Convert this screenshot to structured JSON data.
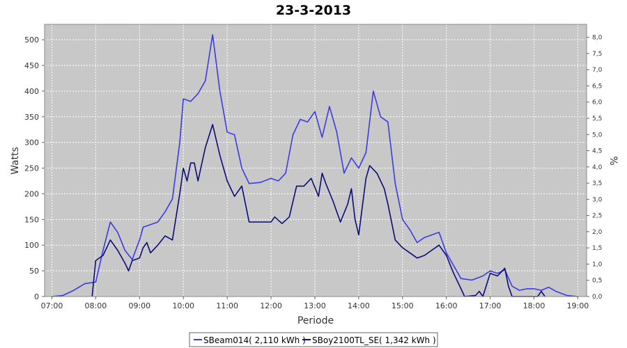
{
  "chart_data": {
    "type": "line",
    "title": "23-3-2013",
    "xlabel": "Periode",
    "ylabel": "Watts",
    "y2label": "%",
    "xlim": [
      "06:50",
      "19:12"
    ],
    "ylim": [
      0,
      530
    ],
    "y2lim": [
      0,
      8.4
    ],
    "x_ticks": [
      "07:00",
      "08:00",
      "09:00",
      "10:00",
      "11:00",
      "12:00",
      "13:00",
      "14:00",
      "15:00",
      "16:00",
      "17:00",
      "18:00",
      "19:00"
    ],
    "y_ticks": [
      0,
      50,
      100,
      150,
      200,
      250,
      300,
      350,
      400,
      450,
      500
    ],
    "y2_ticks": [
      "0,0",
      "0,5",
      "1,0",
      "1,5",
      "2,0",
      "2,5",
      "3,0",
      "3,5",
      "4,0",
      "4,5",
      "5,0",
      "5,5",
      "6,0",
      "6,5",
      "7,0",
      "7,5",
      "8,0"
    ],
    "grid": true,
    "legend_position": "bottom",
    "colors": {
      "plot_background": "#c8c8c8",
      "grid": "#ffffff"
    },
    "series": [
      {
        "name": "SBeam014( 2,110 kWh )",
        "color": "#3a3ae6",
        "points": [
          [
            "07:00",
            0
          ],
          [
            "07:15",
            2
          ],
          [
            "07:30",
            12
          ],
          [
            "07:45",
            25
          ],
          [
            "08:00",
            28
          ],
          [
            "08:10",
            90
          ],
          [
            "08:20",
            145
          ],
          [
            "08:30",
            125
          ],
          [
            "08:40",
            90
          ],
          [
            "08:50",
            72
          ],
          [
            "09:00",
            110
          ],
          [
            "09:05",
            135
          ],
          [
            "09:15",
            140
          ],
          [
            "09:25",
            145
          ],
          [
            "09:35",
            165
          ],
          [
            "09:45",
            190
          ],
          [
            "09:55",
            300
          ],
          [
            "10:00",
            385
          ],
          [
            "10:10",
            380
          ],
          [
            "10:20",
            395
          ],
          [
            "10:30",
            420
          ],
          [
            "10:40",
            510
          ],
          [
            "10:50",
            400
          ],
          [
            "11:00",
            320
          ],
          [
            "11:10",
            315
          ],
          [
            "11:20",
            250
          ],
          [
            "11:30",
            220
          ],
          [
            "11:45",
            222
          ],
          [
            "12:00",
            230
          ],
          [
            "12:10",
            225
          ],
          [
            "12:20",
            240
          ],
          [
            "12:30",
            315
          ],
          [
            "12:40",
            345
          ],
          [
            "12:50",
            340
          ],
          [
            "13:00",
            360
          ],
          [
            "13:10",
            310
          ],
          [
            "13:20",
            370
          ],
          [
            "13:30",
            320
          ],
          [
            "13:40",
            240
          ],
          [
            "13:50",
            270
          ],
          [
            "14:00",
            250
          ],
          [
            "14:10",
            280
          ],
          [
            "14:20",
            400
          ],
          [
            "14:30",
            350
          ],
          [
            "14:40",
            340
          ],
          [
            "14:50",
            220
          ],
          [
            "15:00",
            150
          ],
          [
            "15:10",
            130
          ],
          [
            "15:20",
            105
          ],
          [
            "15:30",
            115
          ],
          [
            "15:40",
            120
          ],
          [
            "15:50",
            125
          ],
          [
            "16:00",
            85
          ],
          [
            "16:10",
            60
          ],
          [
            "16:20",
            35
          ],
          [
            "16:35",
            32
          ],
          [
            "16:50",
            40
          ],
          [
            "17:00",
            50
          ],
          [
            "17:10",
            45
          ],
          [
            "17:20",
            52
          ],
          [
            "17:30",
            20
          ],
          [
            "17:40",
            12
          ],
          [
            "17:50",
            15
          ],
          [
            "18:00",
            15
          ],
          [
            "18:10",
            12
          ],
          [
            "18:20",
            18
          ],
          [
            "18:30",
            10
          ],
          [
            "18:45",
            2
          ],
          [
            "19:00",
            0
          ]
        ]
      },
      {
        "name": "SBoy2100TL_SE( 1,342 kWh )",
        "color": "#0a0a7a",
        "points": [
          [
            "07:55",
            0
          ],
          [
            "08:00",
            70
          ],
          [
            "08:10",
            80
          ],
          [
            "08:20",
            110
          ],
          [
            "08:30",
            90
          ],
          [
            "08:40",
            65
          ],
          [
            "08:45",
            50
          ],
          [
            "08:50",
            70
          ],
          [
            "09:00",
            75
          ],
          [
            "09:05",
            95
          ],
          [
            "09:10",
            105
          ],
          [
            "09:15",
            85
          ],
          [
            "09:25",
            100
          ],
          [
            "09:35",
            118
          ],
          [
            "09:45",
            110
          ],
          [
            "09:55",
            200
          ],
          [
            "10:00",
            250
          ],
          [
            "10:05",
            225
          ],
          [
            "10:10",
            260
          ],
          [
            "10:15",
            260
          ],
          [
            "10:20",
            225
          ],
          [
            "10:30",
            290
          ],
          [
            "10:40",
            335
          ],
          [
            "10:50",
            275
          ],
          [
            "11:00",
            225
          ],
          [
            "11:10",
            195
          ],
          [
            "11:20",
            215
          ],
          [
            "11:30",
            145
          ],
          [
            "11:45",
            145
          ],
          [
            "12:00",
            145
          ],
          [
            "12:05",
            155
          ],
          [
            "12:15",
            142
          ],
          [
            "12:25",
            155
          ],
          [
            "12:35",
            215
          ],
          [
            "12:45",
            215
          ],
          [
            "12:55",
            230
          ],
          [
            "13:05",
            195
          ],
          [
            "13:10",
            240
          ],
          [
            "13:15",
            220
          ],
          [
            "13:25",
            185
          ],
          [
            "13:35",
            145
          ],
          [
            "13:45",
            180
          ],
          [
            "13:50",
            210
          ],
          [
            "13:55",
            150
          ],
          [
            "14:00",
            120
          ],
          [
            "14:10",
            230
          ],
          [
            "14:15",
            255
          ],
          [
            "14:25",
            240
          ],
          [
            "14:35",
            210
          ],
          [
            "14:40",
            180
          ],
          [
            "14:50",
            110
          ],
          [
            "15:00",
            95
          ],
          [
            "15:10",
            85
          ],
          [
            "15:20",
            75
          ],
          [
            "15:30",
            80
          ],
          [
            "15:40",
            90
          ],
          [
            "15:50",
            100
          ],
          [
            "16:00",
            80
          ],
          [
            "16:10",
            45
          ],
          [
            "16:20",
            15
          ],
          [
            "16:25",
            0
          ],
          [
            "16:40",
            2
          ],
          [
            "16:45",
            10
          ],
          [
            "16:50",
            0
          ],
          [
            "17:00",
            45
          ],
          [
            "17:10",
            40
          ],
          [
            "17:20",
            55
          ],
          [
            "17:25",
            20
          ],
          [
            "17:30",
            0
          ],
          [
            "18:05",
            0
          ],
          [
            "18:10",
            10
          ],
          [
            "18:15",
            0
          ]
        ]
      }
    ]
  }
}
